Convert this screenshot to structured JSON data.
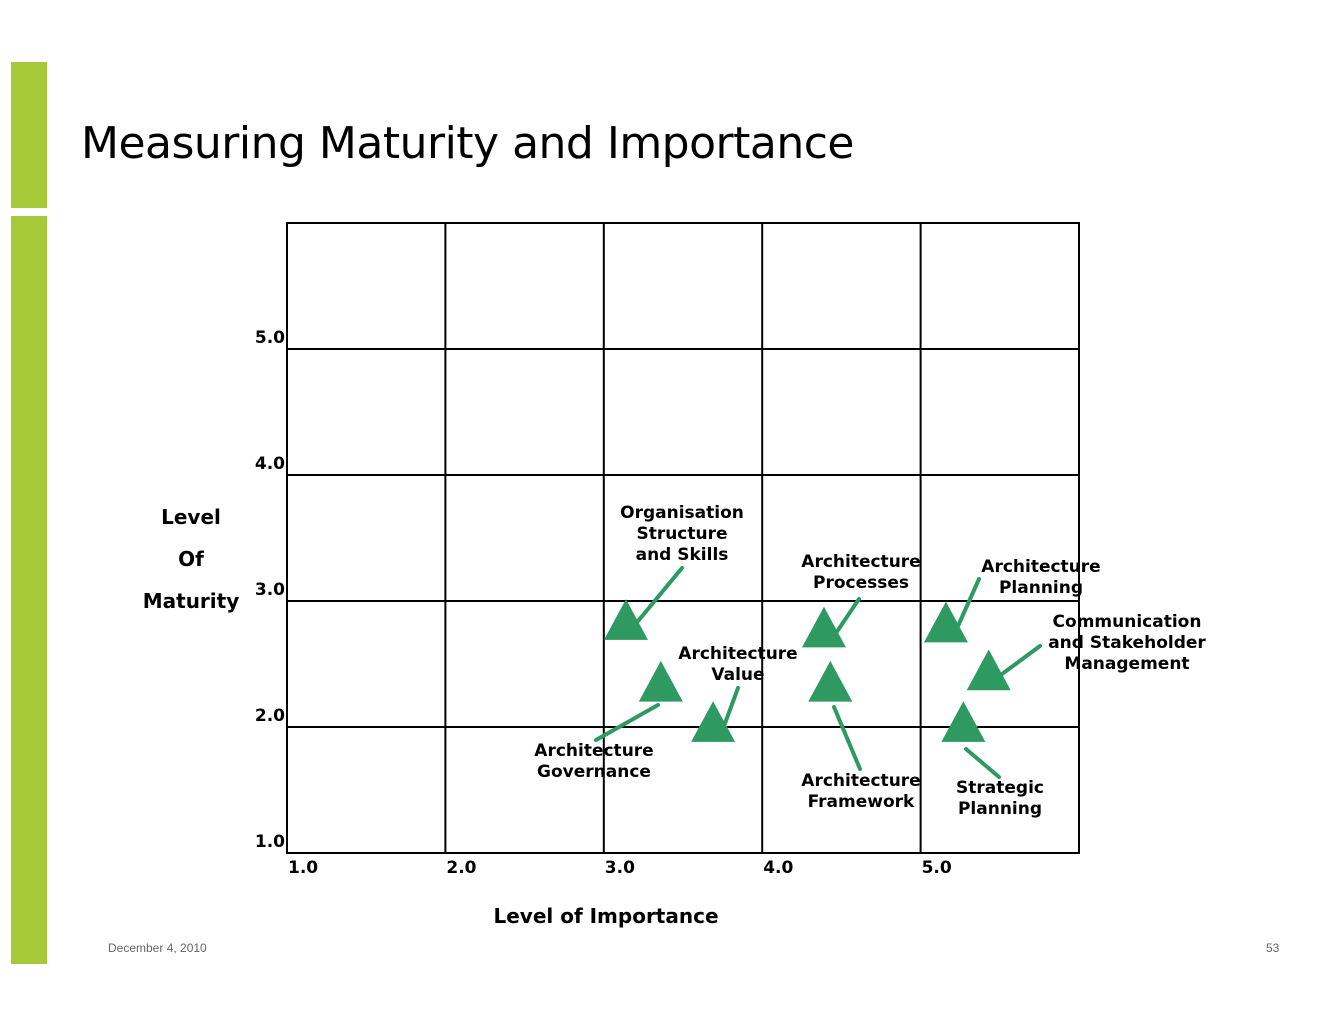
{
  "slide": {
    "title": "Measuring Maturity and Importance",
    "date": "December 4, 2010",
    "page_number": "53",
    "accent_color": "#a6c93a"
  },
  "chart_data": {
    "type": "scatter",
    "xlabel": "Level of Importance",
    "ylabel": [
      "Level",
      "Of",
      "Maturity"
    ],
    "x_ticks": [
      "1.0",
      "2.0",
      "3.0",
      "4.0",
      "5.0"
    ],
    "y_ticks": [
      "1.0",
      "2.0",
      "3.0",
      "4.0",
      "5.0"
    ],
    "xlim": [
      1.0,
      6.0
    ],
    "ylim": [
      1.0,
      6.0
    ],
    "grid": true,
    "marker": "triangle",
    "marker_color": "#2e9a62",
    "points": [
      {
        "label": [
          "Organisation",
          "Structure",
          "and Skills"
        ],
        "x": 3.14,
        "y": 2.84
      },
      {
        "label": [
          "Architecture",
          "Processes"
        ],
        "x": 4.39,
        "y": 2.78
      },
      {
        "label": [
          "Architecture",
          "Planning"
        ],
        "x": 5.16,
        "y": 2.82
      },
      {
        "label": [
          "Communication",
          "and Stakeholder",
          "Management"
        ],
        "x": 5.43,
        "y": 2.44
      },
      {
        "label": [
          "Architecture",
          "Value"
        ],
        "x": 3.69,
        "y": 2.03
      },
      {
        "label": [
          "Architecture",
          "Governance"
        ],
        "x": 3.36,
        "y": 2.35
      },
      {
        "label": [
          "Architecture",
          "Framework"
        ],
        "x": 4.43,
        "y": 2.35
      },
      {
        "label": [
          "Strategic",
          "Planning"
        ],
        "x": 5.27,
        "y": 2.03
      }
    ]
  }
}
